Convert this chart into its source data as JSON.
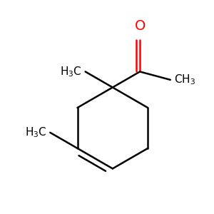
{
  "background_color": "#ffffff",
  "bond_color": "#000000",
  "oxygen_color": "#ff0000",
  "line_width": 1.8,
  "font_size": 11,
  "figsize": [
    3.0,
    3.0
  ],
  "dpi": 100
}
